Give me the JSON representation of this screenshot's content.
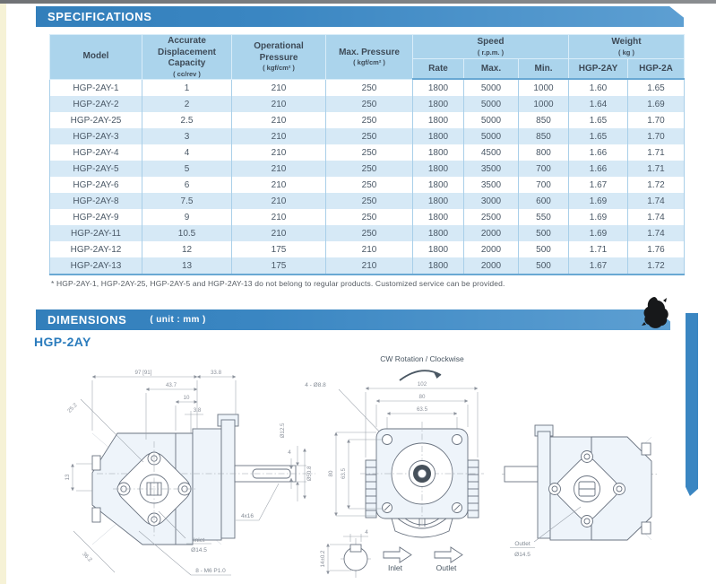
{
  "colors": {
    "accent_blue": "#3a86c2",
    "table_header_bg": "#abd4ec",
    "row_alt_bg": "#d6e9f6",
    "text_dark": "#3d4a57",
    "drawing_line": "#6a7380"
  },
  "spec_section": {
    "title": "SPECIFICATIONS",
    "table": {
      "header": {
        "single": [
          {
            "label": "Model",
            "unit": ""
          },
          {
            "label": "Accurate Displacement Capacity",
            "unit": "( cc/rev )"
          },
          {
            "label": "Operational Pressure",
            "unit": "( kgf/cm² )"
          },
          {
            "label": "Max. Pressure",
            "unit": "( kgf/cm² )"
          }
        ],
        "groups": [
          {
            "label": "Speed",
            "unit": "( r.p.m. )",
            "children": [
              "Rate",
              "Max.",
              "Min."
            ]
          },
          {
            "label": "Weight",
            "unit": "( kg )",
            "children": [
              "HGP-2AY",
              "HGP-2A"
            ]
          }
        ]
      },
      "rows": [
        [
          "HGP-2AY-1",
          "1",
          "210",
          "250",
          "1800",
          "5000",
          "1000",
          "1.60",
          "1.65"
        ],
        [
          "HGP-2AY-2",
          "2",
          "210",
          "250",
          "1800",
          "5000",
          "1000",
          "1.64",
          "1.69"
        ],
        [
          "HGP-2AY-25",
          "2.5",
          "210",
          "250",
          "1800",
          "5000",
          "850",
          "1.65",
          "1.70"
        ],
        [
          "HGP-2AY-3",
          "3",
          "210",
          "250",
          "1800",
          "5000",
          "850",
          "1.65",
          "1.70"
        ],
        [
          "HGP-2AY-4",
          "4",
          "210",
          "250",
          "1800",
          "4500",
          "800",
          "1.66",
          "1.71"
        ],
        [
          "HGP-2AY-5",
          "5",
          "210",
          "250",
          "1800",
          "3500",
          "700",
          "1.66",
          "1.71"
        ],
        [
          "HGP-2AY-6",
          "6",
          "210",
          "250",
          "1800",
          "3500",
          "700",
          "1.67",
          "1.72"
        ],
        [
          "HGP-2AY-8",
          "7.5",
          "210",
          "250",
          "1800",
          "3000",
          "600",
          "1.69",
          "1.74"
        ],
        [
          "HGP-2AY-9",
          "9",
          "210",
          "250",
          "1800",
          "2500",
          "550",
          "1.69",
          "1.74"
        ],
        [
          "HGP-2AY-11",
          "10.5",
          "210",
          "250",
          "1800",
          "2000",
          "500",
          "1.69",
          "1.74"
        ],
        [
          "HGP-2AY-12",
          "12",
          "175",
          "210",
          "1800",
          "2000",
          "500",
          "1.71",
          "1.76"
        ],
        [
          "HGP-2AY-13",
          "13",
          "175",
          "210",
          "1800",
          "2000",
          "500",
          "1.67",
          "1.72"
        ]
      ]
    },
    "footnote": "* HGP-2AY-1, HGP-2AY-25, HGP-2AY-5 and HGP-2AY-13 do not belong to regular products. Customized service can be provided."
  },
  "dimensions_section": {
    "title": "DIMENSIONS",
    "unit_note": "( unit : mm )",
    "model_label": "HGP-2AY",
    "left_view": {
      "dim_total": "97 [91]",
      "dim_rear": "33.8",
      "dim_43_7": "43.7",
      "dim_10": "10",
      "dim_3_8": "3.8",
      "dim_chamfer": "25.2",
      "dim_13": "13",
      "shaft_dia": "Ø12.5",
      "pilot_dia": "Ø50.8",
      "key_width": "4",
      "key_label": "4x16",
      "inlet_word": "Inlet",
      "inlet_dia": "Ø14.5",
      "thread_label": "8 - M6 P1.0",
      "dim_corner": "36.2"
    },
    "key_detail": {
      "dim_width": "4",
      "dim_height": "14±0.2"
    },
    "front_view": {
      "rotation_note": "CW Rotation / Clockwise",
      "dim_102": "102",
      "dim_80_h": "80",
      "dim_63_5_h": "63.5",
      "dim_80_v": "80",
      "dim_63_5_v": "63.5",
      "holes_label": "4 - Ø8.8",
      "inlet_label": "Inlet",
      "outlet_label": "Outlet"
    },
    "right_view": {
      "outlet_word": "Outlet",
      "outlet_dia": "Ø14.5"
    }
  }
}
